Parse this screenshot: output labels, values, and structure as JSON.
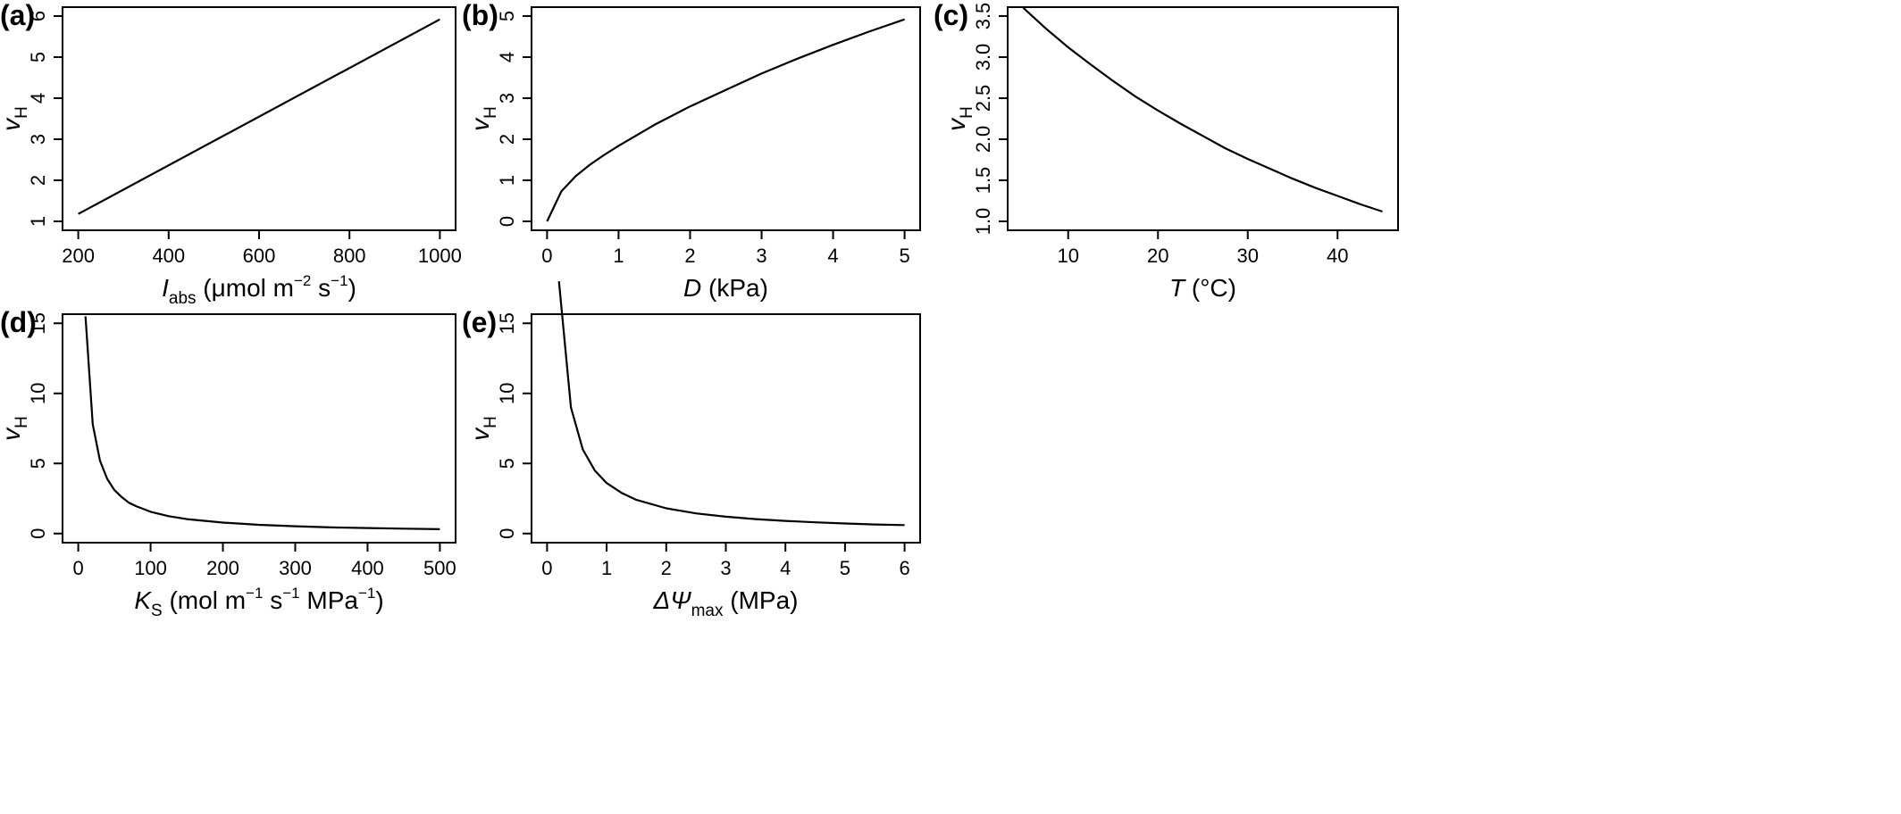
{
  "chart_data": [
    {
      "type": "line",
      "panel_label": "(a)",
      "xlabel": {
        "main": "I",
        "sub": "abs",
        "unit": "(μmol m",
        "sup1": "−2",
        "mid": " s",
        "sup2": "−1",
        "end": ")"
      },
      "ylabel": {
        "main": "v",
        "sub": "H"
      },
      "xlim": [
        200,
        1000
      ],
      "ylim": [
        1,
        6
      ],
      "xticks": [
        "200",
        "400",
        "600",
        "800",
        "1000"
      ],
      "yticks": [
        "1",
        "2",
        "3",
        "4",
        "5",
        "6"
      ],
      "x": [
        200,
        1000
      ],
      "y": [
        1.18,
        5.92
      ]
    },
    {
      "type": "line",
      "panel_label": "(b)",
      "xlabel": {
        "main": "D",
        "unit": "(kPa)"
      },
      "ylabel": {
        "main": "v",
        "sub": "H"
      },
      "xlim": [
        0,
        5
      ],
      "ylim": [
        0,
        5
      ],
      "xticks": [
        "0",
        "1",
        "2",
        "3",
        "4",
        "5"
      ],
      "yticks": [
        "0",
        "1",
        "2",
        "3",
        "4",
        "5"
      ],
      "x": [
        0,
        0.2,
        0.4,
        0.6,
        0.8,
        1.0,
        1.5,
        2.0,
        2.5,
        3.0,
        3.5,
        4.0,
        4.5,
        5.0
      ],
      "y": [
        0,
        0.73,
        1.1,
        1.38,
        1.62,
        1.84,
        2.35,
        2.8,
        3.2,
        3.6,
        3.96,
        4.3,
        4.62,
        4.92
      ]
    },
    {
      "type": "line",
      "panel_label": "(c)",
      "xlabel": {
        "main": "T",
        "unit": "(°C)"
      },
      "ylabel": {
        "main": "v",
        "sub": "H"
      },
      "xlim": [
        5,
        45
      ],
      "ylim": [
        1.0,
        3.5
      ],
      "xticks": [
        "10",
        "20",
        "30",
        "40"
      ],
      "yticks": [
        "1.0",
        "1.5",
        "2.0",
        "2.5",
        "3.0",
        "3.5"
      ],
      "x": [
        5,
        7.5,
        10,
        12.5,
        15,
        17.5,
        20,
        22.5,
        25,
        27.5,
        30,
        32.5,
        35,
        37.5,
        40,
        42.5,
        45
      ],
      "y": [
        3.6,
        3.35,
        3.12,
        2.91,
        2.71,
        2.52,
        2.35,
        2.19,
        2.04,
        1.89,
        1.76,
        1.64,
        1.52,
        1.41,
        1.31,
        1.21,
        1.12
      ]
    },
    {
      "type": "line",
      "panel_label": "(d)",
      "xlabel": {
        "main": "K",
        "sub": "S",
        "unit": "(mol m",
        "sup1": "−1",
        "mid": " s",
        "sup2": "−1",
        "mid2": " MPa",
        "sup3": "−1",
        "end": ")"
      },
      "ylabel": {
        "main": "v",
        "sub": "H"
      },
      "xlim": [
        0,
        500
      ],
      "ylim": [
        0,
        15
      ],
      "xticks": [
        "0",
        "100",
        "200",
        "300",
        "400",
        "500"
      ],
      "yticks": [
        "0",
        "5",
        "10",
        "15"
      ],
      "x": [
        10,
        20,
        30,
        40,
        50,
        60,
        70,
        80,
        100,
        125,
        150,
        200,
        250,
        300,
        350,
        400,
        450,
        500
      ],
      "y": [
        15.5,
        7.8,
        5.2,
        3.9,
        3.1,
        2.6,
        2.2,
        1.95,
        1.55,
        1.24,
        1.03,
        0.78,
        0.62,
        0.52,
        0.44,
        0.39,
        0.35,
        0.31
      ]
    },
    {
      "type": "line",
      "panel_label": "(e)",
      "xlabel": {
        "main": "ΔΨ",
        "sub": "max",
        "unit": "(MPa)"
      },
      "ylabel": {
        "main": "v",
        "sub": "H"
      },
      "xlim": [
        0,
        6
      ],
      "ylim": [
        0,
        15
      ],
      "xticks": [
        "0",
        "1",
        "2",
        "3",
        "4",
        "5",
        "6"
      ],
      "yticks": [
        "0",
        "5",
        "10",
        "15"
      ],
      "x": [
        0.2,
        0.4,
        0.6,
        0.8,
        1.0,
        1.25,
        1.5,
        2.0,
        2.5,
        3.0,
        3.5,
        4.0,
        4.5,
        5.0,
        5.5,
        6.0
      ],
      "y": [
        18,
        9,
        6,
        4.5,
        3.6,
        2.9,
        2.4,
        1.8,
        1.44,
        1.2,
        1.03,
        0.9,
        0.8,
        0.72,
        0.65,
        0.6
      ]
    }
  ]
}
